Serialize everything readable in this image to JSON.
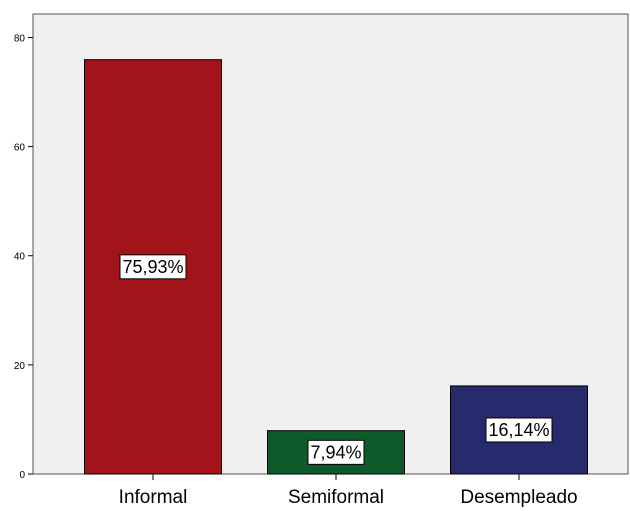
{
  "chart_data": {
    "type": "bar",
    "categories": [
      "Informal",
      "Semiformal",
      "Desempleado"
    ],
    "values": [
      75.93,
      7.94,
      16.14
    ],
    "data_labels": [
      "75,93%",
      "7,94%",
      "16,14%"
    ],
    "colors": [
      "#a21419",
      "#0f5a2b",
      "#272a6d"
    ],
    "title": "",
    "xlabel": "",
    "ylabel": "",
    "ylim": [
      0,
      80
    ],
    "yticks": [
      0,
      20,
      40,
      60,
      80
    ],
    "grid": false,
    "legend": "none",
    "background": "#f0f0f0"
  }
}
